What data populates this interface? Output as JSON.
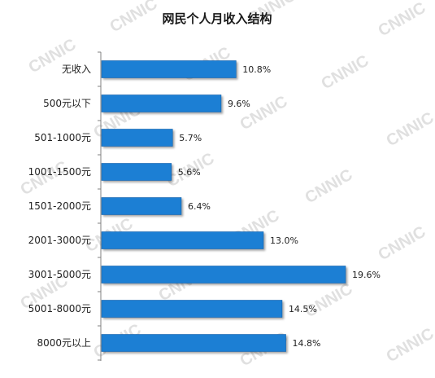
{
  "watermark": "CNNIC",
  "chart_data": {
    "type": "bar",
    "orientation": "horizontal",
    "title": "网民个人月收入结构",
    "categories": [
      "无收入",
      "500元以下",
      "501-1000元",
      "1001-1500元",
      "1501-2000元",
      "2001-3000元",
      "3001-5000元",
      "5001-8000元",
      "8000元以上"
    ],
    "values": [
      10.8,
      9.6,
      5.7,
      5.6,
      6.4,
      13.0,
      19.6,
      14.5,
      14.8
    ],
    "value_labels": [
      "10.8%",
      "9.6%",
      "5.7%",
      "5.6%",
      "6.4%",
      "13.0%",
      "19.6%",
      "14.5%",
      "14.8%"
    ],
    "unit": "%",
    "xlim": [
      0,
      19.6
    ],
    "grid": false,
    "legend": "none",
    "colors": {
      "bar": "#1a7fd4",
      "bar_edge": "#0f5fa8",
      "axis": "#808080",
      "text": "#222222",
      "watermark": "#d6d6d6"
    }
  }
}
